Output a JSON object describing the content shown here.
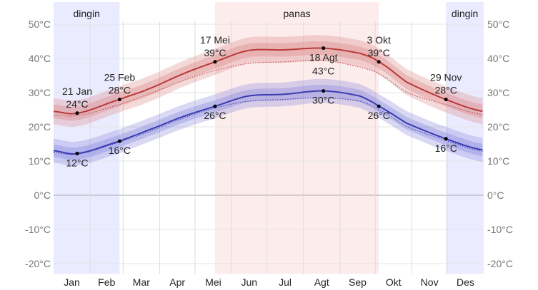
{
  "chart_data": {
    "type": "line",
    "title": "",
    "xlabel": "",
    "ylabel": "",
    "ylim": [
      -23,
      53
    ],
    "yticks": [
      50,
      40,
      30,
      20,
      10,
      0,
      -10,
      -20
    ],
    "ytick_labels": [
      "50°C",
      "40°C",
      "30°C",
      "20°C",
      "10°C",
      "0°C",
      "-10°C",
      "-20°C"
    ],
    "month_labels": [
      "Jan",
      "Feb",
      "Mar",
      "Apr",
      "Mei",
      "Jun",
      "Jul",
      "Agt",
      "Sep",
      "Okt",
      "Nov",
      "Des"
    ],
    "month_starts": [
      0,
      31,
      59,
      90,
      120,
      151,
      181,
      212,
      243,
      273,
      304,
      334,
      365
    ],
    "seasons": [
      {
        "label": "dingin",
        "start": 0,
        "end": 56,
        "color": "#ebebff"
      },
      {
        "label": "panas",
        "start": 137,
        "end": 276,
        "color": "#fdecec"
      },
      {
        "label": "dingin",
        "start": 333,
        "end": 365,
        "color": "#ebebff"
      }
    ],
    "x_days": [
      0,
      20,
      56,
      80,
      110,
      137,
      165,
      195,
      229,
      260,
      276,
      300,
      333,
      365
    ],
    "series": [
      {
        "name": "high",
        "color": "#b93a3a",
        "band_color": "#d98080",
        "values": [
          24.5,
          24,
          28,
          31,
          35.5,
          39,
          42.3,
          42.5,
          43,
          41.5,
          39,
          33,
          28,
          24.5
        ],
        "dotted": [
          23.5,
          23.3,
          26.5,
          29.5,
          33.5,
          36.5,
          38.5,
          39,
          39.5,
          37.5,
          35.5,
          30,
          26.5,
          23.5
        ],
        "band_inner": 2,
        "band_outer": 3.8
      },
      {
        "name": "low",
        "color": "#3c3cb4",
        "band_color": "#8080d9",
        "values": [
          13,
          12.2,
          15.8,
          19,
          23,
          26,
          29,
          29.5,
          30.5,
          29,
          26,
          21,
          16.5,
          13.2
        ],
        "dotted": [
          12.5,
          12,
          15.5,
          18.5,
          22.5,
          25.5,
          27.5,
          28,
          28.5,
          27.5,
          25,
          20,
          16,
          12.8
        ],
        "band_inner": 1.8,
        "band_outer": 3.5
      }
    ],
    "annotations": [
      {
        "day": 20,
        "value": 24,
        "date": "21 Jan",
        "label": "24°C",
        "pos": "above"
      },
      {
        "day": 56,
        "value": 28,
        "date": "25 Feb",
        "label": "28°C",
        "pos": "above"
      },
      {
        "day": 137,
        "value": 39,
        "date": "17 Mei",
        "label": "39°C",
        "pos": "above"
      },
      {
        "day": 229,
        "value": 43,
        "date": "18 Agt",
        "label": "43°C",
        "pos": "below"
      },
      {
        "day": 276,
        "value": 39,
        "date": "3 Okt",
        "label": "39°C",
        "pos": "above"
      },
      {
        "day": 333,
        "value": 28,
        "date": "29 Nov",
        "label": "28°C",
        "pos": "above"
      },
      {
        "day": 20,
        "value": 12.2,
        "date": "",
        "label": "12°C",
        "pos": "below"
      },
      {
        "day": 56,
        "value": 15.8,
        "date": "",
        "label": "16°C",
        "pos": "below"
      },
      {
        "day": 137,
        "value": 26,
        "date": "",
        "label": "26°C",
        "pos": "below"
      },
      {
        "day": 229,
        "value": 30.5,
        "date": "",
        "label": "30°C",
        "pos": "below"
      },
      {
        "day": 276,
        "value": 26,
        "date": "",
        "label": "26°C",
        "pos": "below"
      },
      {
        "day": 333,
        "value": 16.5,
        "date": "",
        "label": "16°C",
        "pos": "below"
      }
    ]
  }
}
